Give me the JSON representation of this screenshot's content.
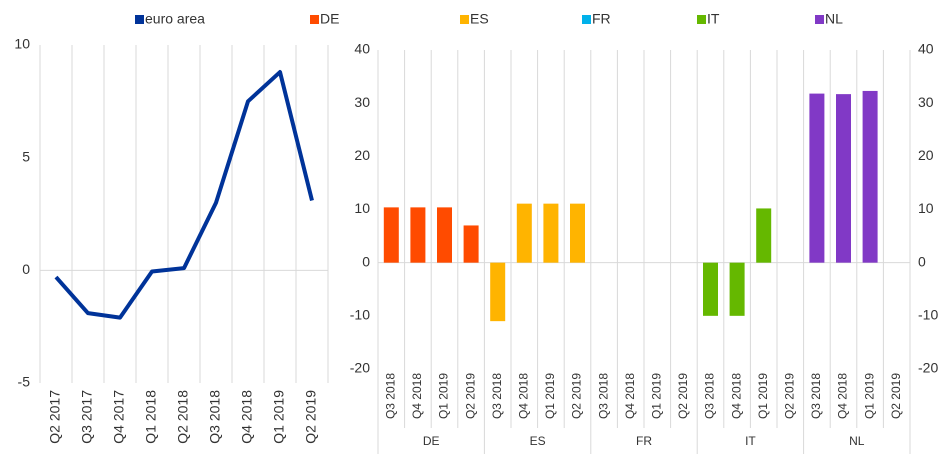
{
  "chart_data": [
    {
      "type": "line",
      "categories": [
        "Q2 2017",
        "Q3 2017",
        "Q4 2017",
        "Q1 2018",
        "Q2 2018",
        "Q3 2018",
        "Q4 2018",
        "Q1 2019",
        "Q2 2019"
      ],
      "series": [
        {
          "name": "euro area",
          "color": "#003399",
          "values": [
            -0.3,
            -1.9,
            -2.1,
            -0.05,
            0.1,
            3.0,
            7.5,
            8.8,
            3.1
          ]
        }
      ],
      "ylim": [
        -5,
        10
      ],
      "yticks": [
        -5,
        0,
        5,
        10
      ],
      "grid": true
    },
    {
      "type": "bar",
      "categories": [
        "Q3 2018",
        "Q4 2018",
        "Q1 2019",
        "Q2 2019"
      ],
      "series": [
        {
          "name": "DE",
          "color": "#ff4b00",
          "values": [
            10.4,
            10.4,
            10.4,
            7.0
          ]
        },
        {
          "name": "ES",
          "color": "#ffb400",
          "values": [
            -11.0,
            11.1,
            11.1,
            11.1
          ]
        },
        {
          "name": "FR",
          "color": "#00b1ea",
          "values": [
            null,
            null,
            null,
            null
          ]
        },
        {
          "name": "IT",
          "color": "#65b800",
          "values": [
            -10.0,
            -10.0,
            10.2,
            null
          ]
        },
        {
          "name": "NL",
          "color": "#8139c6",
          "values": [
            31.8,
            31.7,
            32.3,
            null
          ]
        }
      ],
      "ylim": [
        -20,
        40
      ],
      "yticks": [
        -20,
        -10,
        0,
        10,
        20,
        30,
        40
      ],
      "y2lim": [
        -20,
        40
      ],
      "y2ticks": [
        -20,
        -10,
        0,
        10,
        20,
        30,
        40
      ],
      "grid": true
    }
  ]
}
